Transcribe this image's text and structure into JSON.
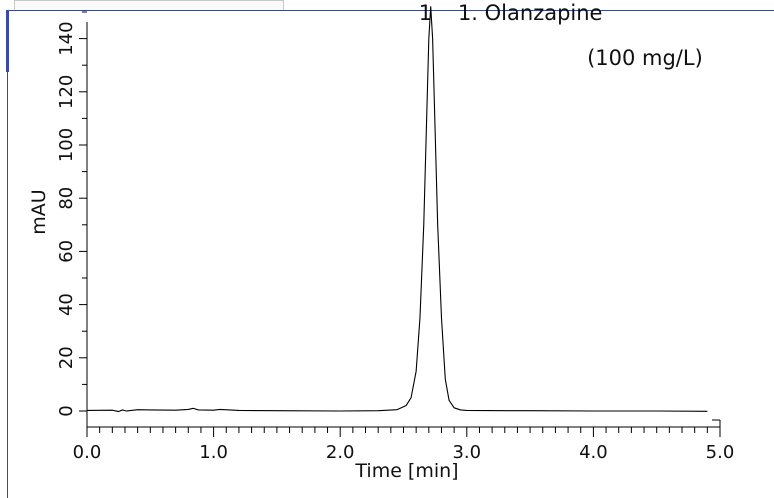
{
  "chart_data": {
    "type": "line",
    "title": "",
    "xlabel": "Time [min]",
    "ylabel": "mAU",
    "xlim": [
      0.0,
      5.0
    ],
    "ylim": [
      -3,
      155
    ],
    "x_ticks": [
      0.0,
      1.0,
      2.0,
      3.0,
      4.0,
      5.0
    ],
    "x_tick_labels": [
      "0.0",
      "1.0",
      "2.0",
      "3.0",
      "4.0",
      "5.0"
    ],
    "y_ticks": [
      0,
      20,
      40,
      60,
      80,
      100,
      120,
      140
    ],
    "y_tick_labels": [
      "0",
      "20",
      "40",
      "60",
      "80",
      "100",
      "120",
      "140"
    ],
    "grid": false,
    "series": [
      {
        "color": "#000000",
        "x": [
          0.0,
          0.2,
          0.25,
          0.28,
          0.31,
          0.4,
          0.5,
          0.7,
          0.8,
          0.84,
          0.88,
          1.0,
          1.05,
          1.2,
          1.5,
          2.0,
          2.3,
          2.45,
          2.52,
          2.56,
          2.6,
          2.63,
          2.66,
          2.68,
          2.7,
          2.715,
          2.73,
          2.75,
          2.77,
          2.8,
          2.83,
          2.86,
          2.9,
          2.95,
          3.0,
          3.5,
          4.0,
          4.5,
          4.9
        ],
        "y": [
          0.2,
          0.3,
          -0.2,
          0.4,
          0.0,
          0.5,
          0.4,
          0.3,
          0.6,
          1.0,
          0.4,
          0.3,
          0.6,
          0.2,
          0.1,
          0.0,
          0.1,
          0.5,
          2.0,
          5.0,
          15.0,
          35.0,
          70.0,
          105.0,
          140.0,
          152.0,
          140.0,
          105.0,
          70.0,
          35.0,
          12.0,
          4.0,
          1.2,
          0.4,
          0.2,
          0.1,
          0.0,
          0.0,
          -0.1
        ]
      }
    ],
    "annotations": [
      {
        "text": "1",
        "x": 2.62,
        "y": 150
      },
      {
        "text": "1. Olanzapine",
        "x": 2.93,
        "y": 150
      },
      {
        "text": "(100 mg/L)",
        "x": 3.95,
        "y": 133
      }
    ]
  }
}
